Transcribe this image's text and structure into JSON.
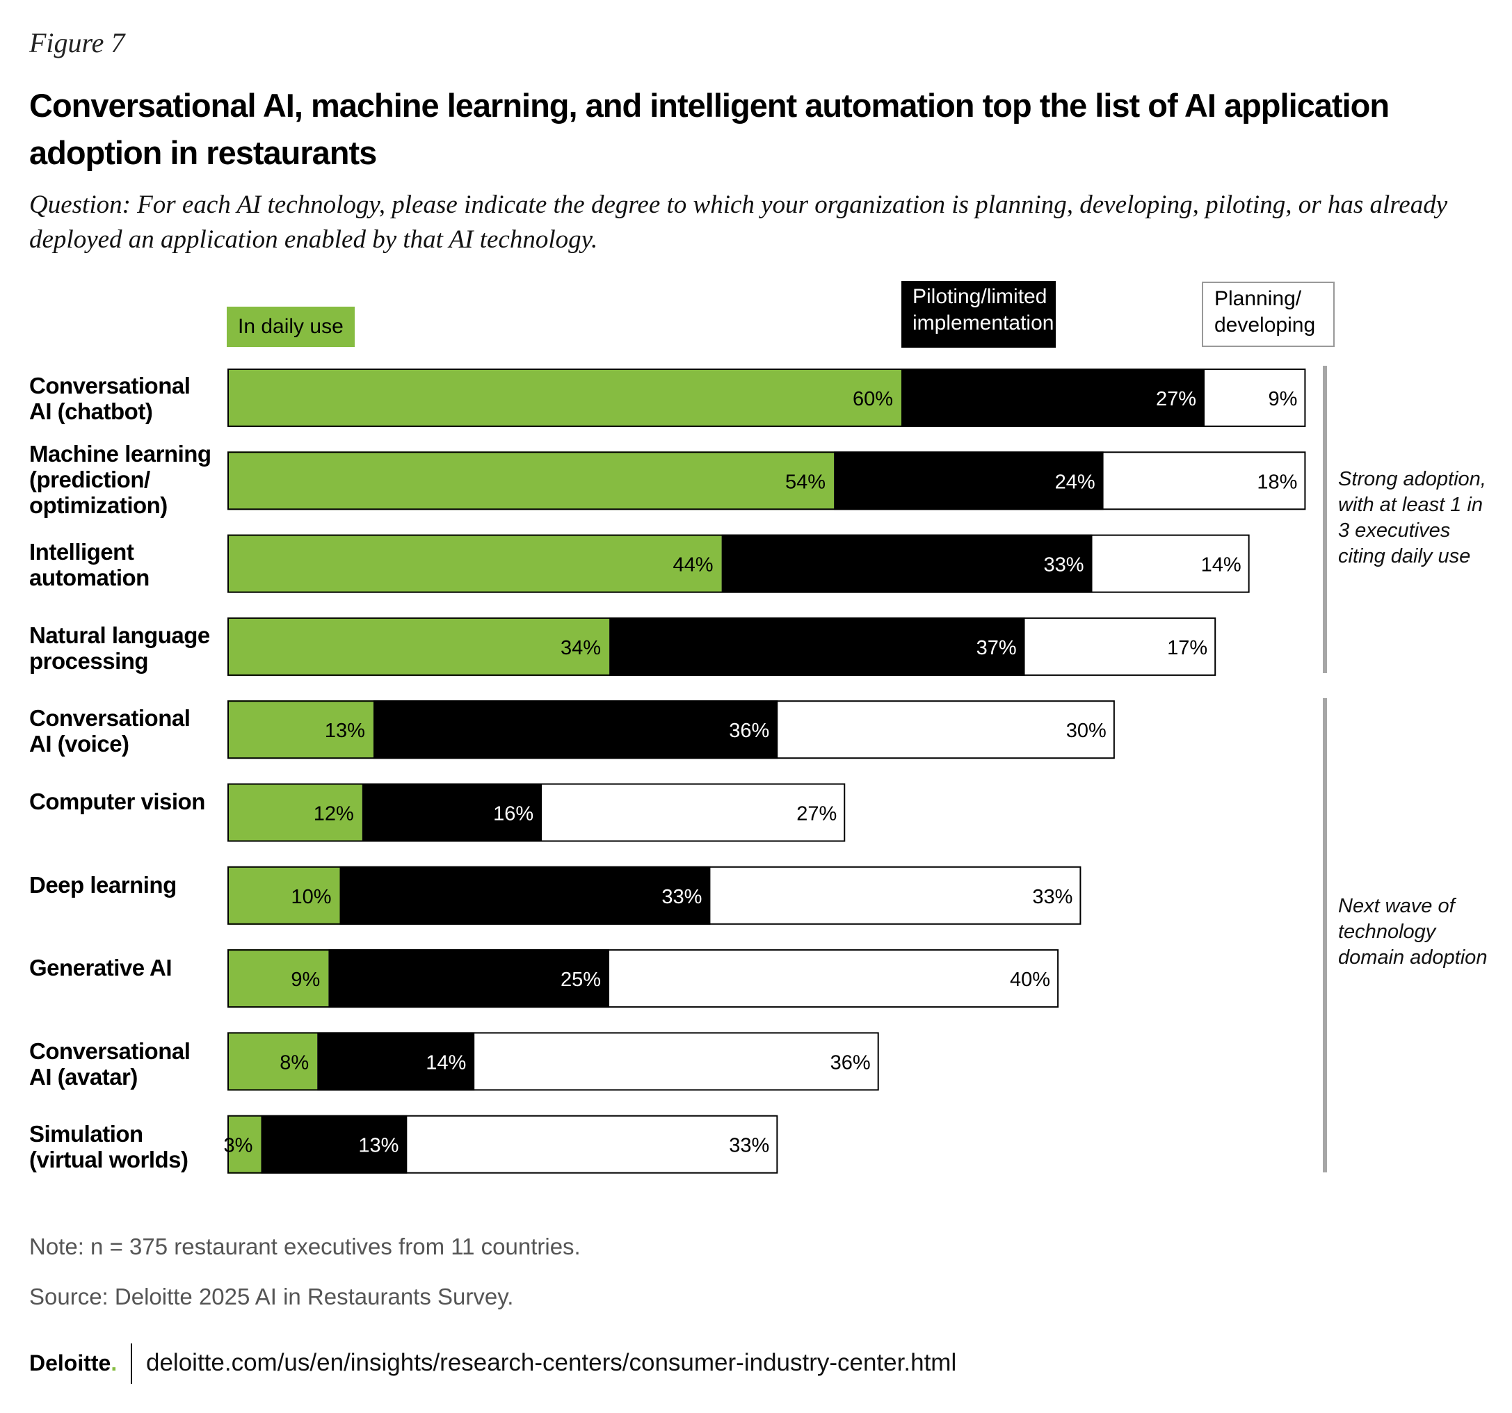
{
  "figure_label": "Figure 7",
  "title": "Conversational AI, machine learning, and intelligent automation top the list of AI application adoption in restaurants",
  "question": "Question: For each AI technology, please indicate the degree to which your organization is planning, developing, piloting, or has already deployed an application enabled by that AI technology.",
  "legend": {
    "in_daily_use": "In daily use",
    "piloting": "Piloting/limited implementation",
    "planning": "Planning/ developing"
  },
  "colors": {
    "in_daily_use": "#86bc41",
    "piloting": "#000000",
    "planning": "#ffffff"
  },
  "chart_data": {
    "type": "bar",
    "orientation": "horizontal",
    "stacked": true,
    "categories": [
      "Conversational AI (chatbot)",
      "Machine learning (prediction/ optimization)",
      "Intelligent automation",
      "Natural language processing",
      "Conversational AI (voice)",
      "Computer vision",
      "Deep learning",
      "Generative AI",
      "Conversational AI (avatar)",
      "Simulation (virtual worlds)"
    ],
    "series": [
      {
        "name": "In daily use",
        "values": [
          60,
          54,
          44,
          34,
          13,
          12,
          10,
          9,
          8,
          3
        ]
      },
      {
        "name": "Piloting/limited implementation",
        "values": [
          27,
          24,
          33,
          37,
          36,
          16,
          33,
          25,
          14,
          13
        ]
      },
      {
        "name": "Planning/developing",
        "values": [
          9,
          18,
          14,
          17,
          30,
          27,
          33,
          40,
          36,
          33
        ]
      }
    ],
    "value_suffix": "%",
    "legend_position": "top",
    "grid": false
  },
  "annotations": {
    "strong": "Strong adoption, with at least 1 in 3 executives citing daily use",
    "next_wave": "Next wave of technology domain adoption"
  },
  "note": "Note: n = 375 restaurant executives from 11 countries.",
  "source": "Source: Deloitte 2025 AI in Restaurants Survey.",
  "footer": {
    "brand": "Deloitte",
    "brand_dot": ".",
    "url": "deloitte.com/us/en/insights/research-centers/consumer-industry-center.html"
  }
}
